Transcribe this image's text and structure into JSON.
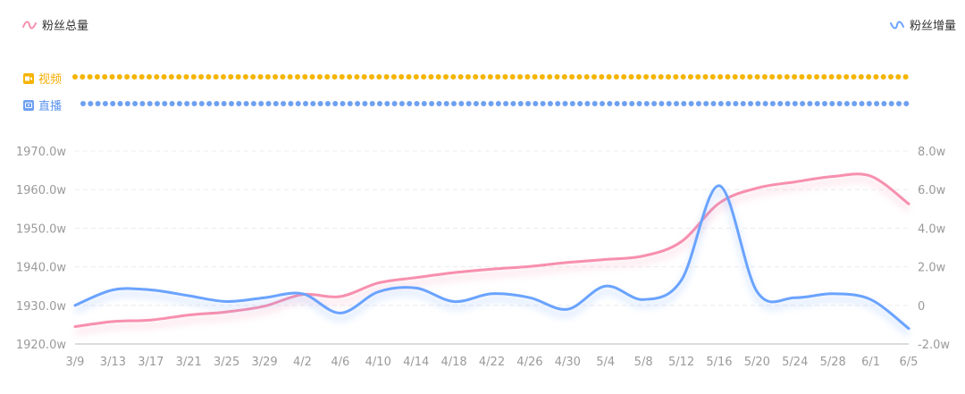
{
  "legend": {
    "total_label": "粉丝总量",
    "growth_label": "粉丝增量"
  },
  "tracks": {
    "video_label": "视频",
    "live_label": "直播"
  },
  "colors": {
    "total": "#f78fae",
    "growth": "#6aa3ff",
    "video": "#f5b400",
    "live": "#6ea0f2"
  },
  "chart_data": {
    "type": "line",
    "x": [
      "3/9",
      "3/13",
      "3/17",
      "3/21",
      "3/25",
      "3/29",
      "4/2",
      "4/6",
      "4/10",
      "4/14",
      "4/18",
      "4/22",
      "4/26",
      "4/30",
      "5/4",
      "5/8",
      "5/12",
      "5/16",
      "5/20",
      "5/24",
      "5/28",
      "6/1",
      "6/5"
    ],
    "y_left": {
      "ticks": [
        "1920.0w",
        "1930.0w",
        "1940.0w",
        "1950.0w",
        "1960.0w",
        "1970.0w"
      ],
      "ylim": [
        1920,
        1970
      ]
    },
    "y_right": {
      "ticks": [
        "-2.0w",
        "0",
        "2.0w",
        "4.0w",
        "6.0w",
        "8.0w"
      ],
      "ylim": [
        -2,
        8
      ]
    },
    "series": [
      {
        "name": "粉丝总量",
        "axis": "left",
        "values": [
          1924.5,
          1925.8,
          1926.2,
          1927.5,
          1928.3,
          1929.8,
          1932.8,
          1932.3,
          1935.8,
          1937.2,
          1938.5,
          1939.4,
          1940.1,
          1941.1,
          1941.9,
          1942.8,
          1946.5,
          1956.5,
          1960.4,
          1962.0,
          1963.4,
          1963.5,
          1956.3
        ]
      },
      {
        "name": "粉丝增量",
        "axis": "right",
        "values": [
          0.0,
          0.8,
          0.8,
          0.5,
          0.2,
          0.4,
          0.6,
          -0.4,
          0.7,
          0.9,
          0.2,
          0.6,
          0.4,
          -0.2,
          1.0,
          0.3,
          1.3,
          6.2,
          0.7,
          0.4,
          0.6,
          0.3,
          -1.2
        ]
      }
    ]
  }
}
